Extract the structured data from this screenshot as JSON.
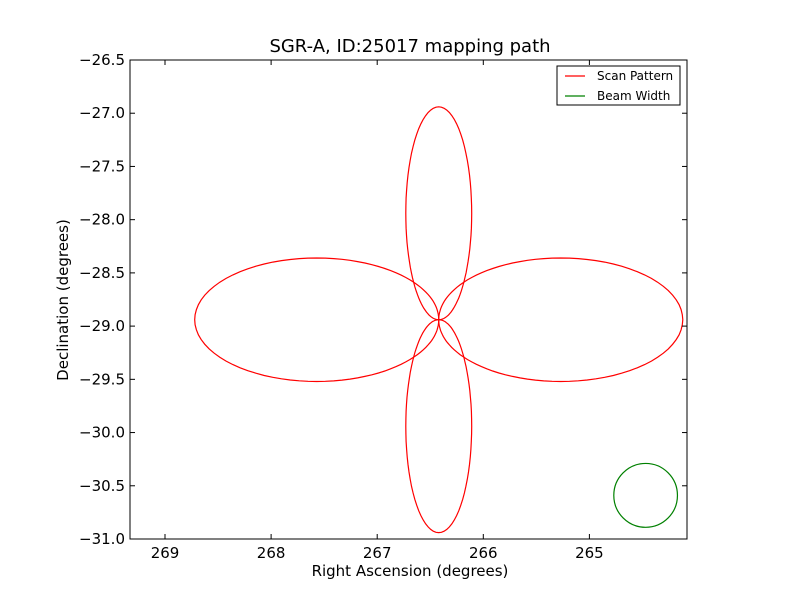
{
  "chart_data": {
    "type": "line",
    "title": "SGR-A, ID:25017 mapping path",
    "xlabel": "Right Ascension (degrees)",
    "ylabel": "Declination (degrees)",
    "xlim": [
      269.33,
      264.08
    ],
    "ylim": [
      -31.0,
      -26.5
    ],
    "x_inverted": true,
    "xticks": [
      269,
      268,
      267,
      266,
      265
    ],
    "xtick_labels": [
      "269",
      "268",
      "267",
      "266",
      "265"
    ],
    "yticks": [
      -26.5,
      -27.0,
      -27.5,
      -28.0,
      -28.5,
      -29.0,
      -29.5,
      -30.0,
      -30.5,
      -31.0
    ],
    "ytick_labels": [
      "−26.5",
      "−27.0",
      "−27.5",
      "−28.0",
      "−28.5",
      "−29.0",
      "−29.5",
      "−30.0",
      "−30.5",
      "−31.0"
    ],
    "grid": false,
    "legend_position": "top-right",
    "series": [
      {
        "name": "Scan Pattern",
        "color": "#ff0000",
        "center": [
          266.42,
          -28.94
        ],
        "lobe_length_ra": 2.3,
        "lobe_length_dec": 2.0,
        "lobe_halfwidth_ra": 0.58,
        "lobe_halfwidth_dec": 0.54,
        "endpoints": [
          [
            268.69,
            -28.93
          ],
          [
            268.62,
            -29.17
          ]
        ]
      },
      {
        "name": "Beam Width",
        "color": "#008000",
        "center": [
          264.47,
          -30.59
        ],
        "radius": 0.3
      }
    ]
  }
}
